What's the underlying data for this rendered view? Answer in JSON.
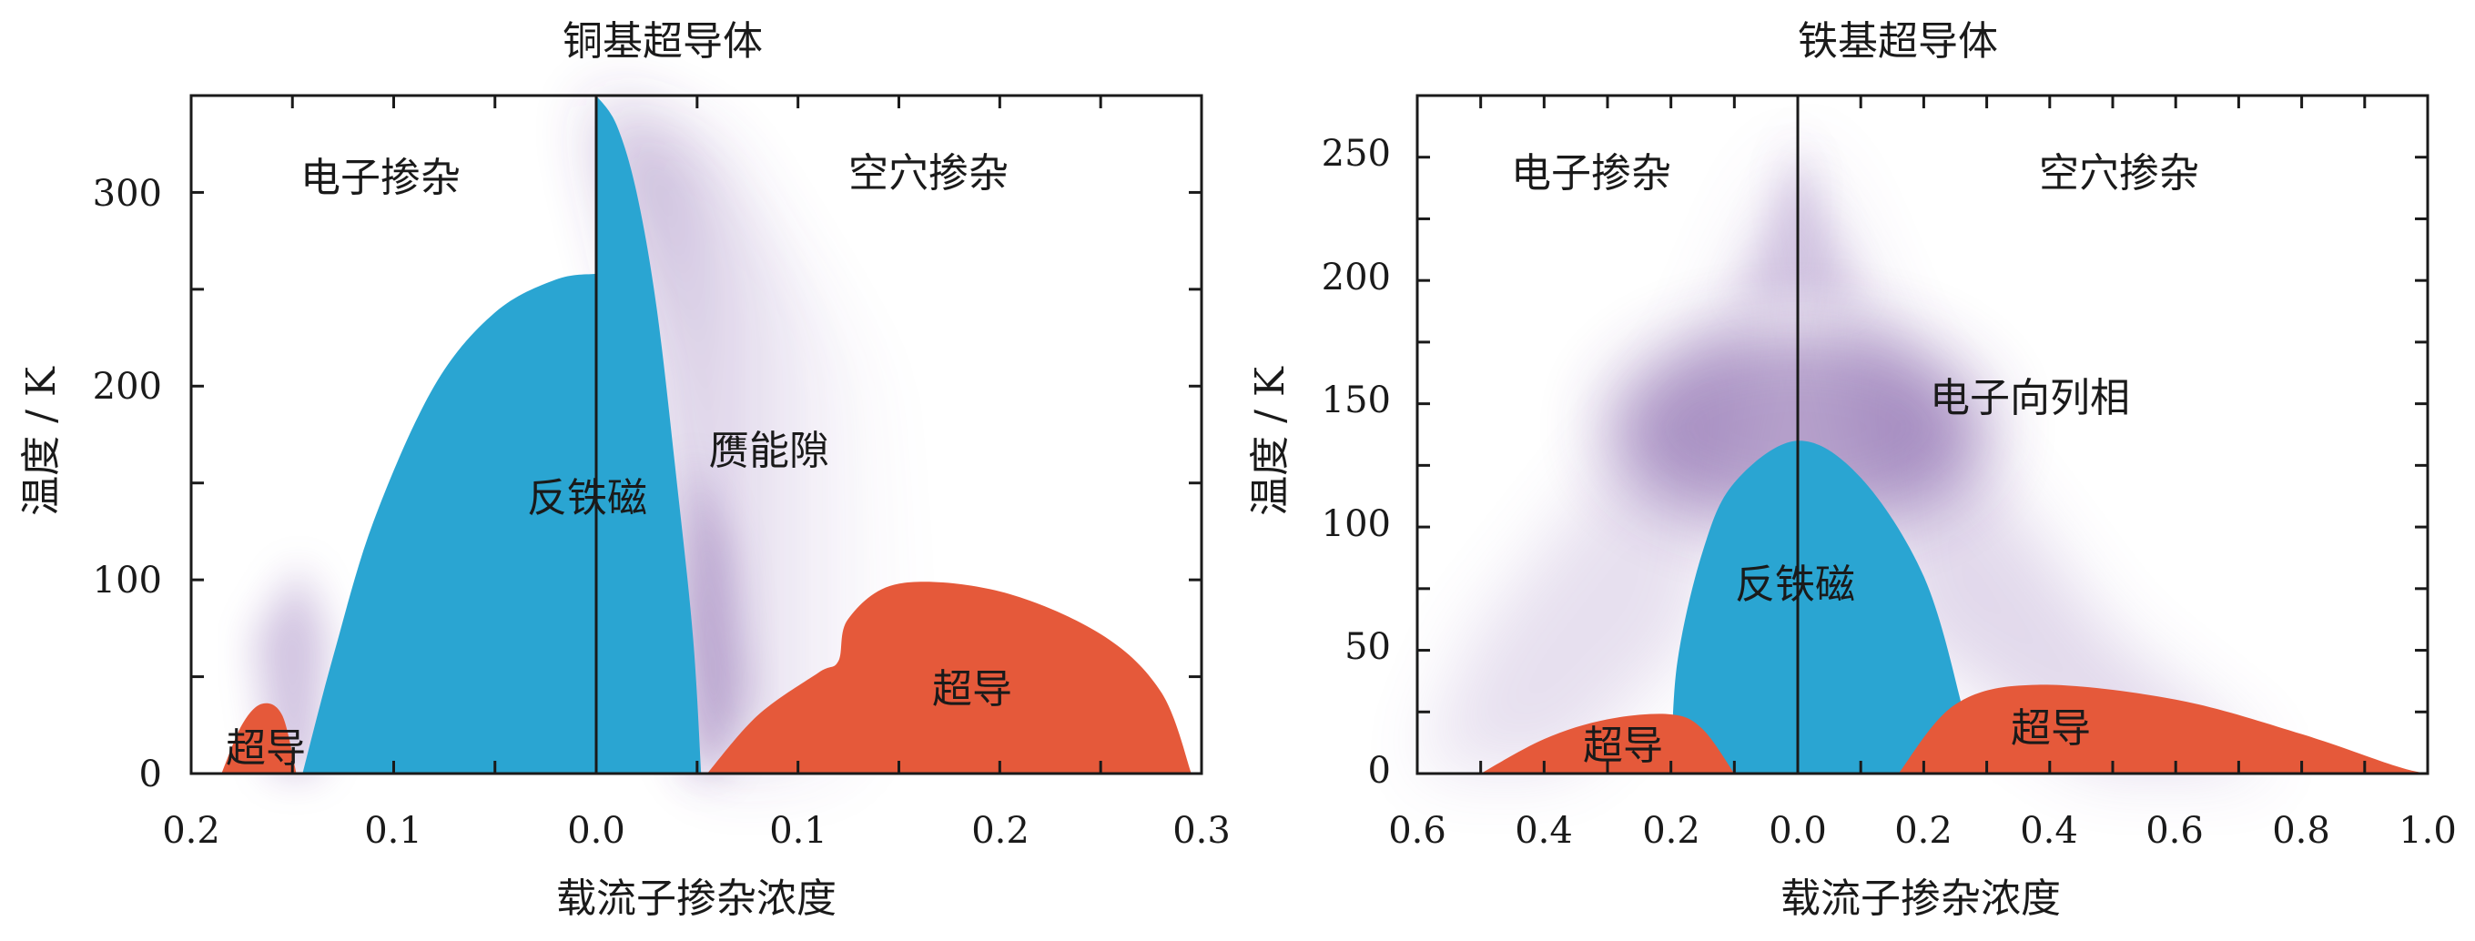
{
  "chart_data": [
    {
      "type": "phase-diagram",
      "title": "铜基超导体",
      "xlabel": "载流子掺杂浓度",
      "ylabel": "温度 / K",
      "xlim_electron": [
        0.2,
        0.0
      ],
      "xlim_hole": [
        0.0,
        0.3
      ],
      "ylim": [
        0,
        350
      ],
      "x_ticks_electron": [
        "0.2",
        "0.1",
        "0.0"
      ],
      "x_ticks_hole": [
        "0.1",
        "0.2",
        "0.3"
      ],
      "y_ticks": [
        "0",
        "100",
        "200",
        "300"
      ],
      "region_labels": {
        "electron_doped": "电子掺杂",
        "hole_doped": "空穴掺杂",
        "antiferromagnetic": "反铁磁",
        "pseudogap": "赝能隙",
        "sc_electron": "超导",
        "sc_hole": "超导"
      },
      "regions": {
        "afm_electron_boundary": [
          [
            0.0,
            258
          ],
          [
            0.02,
            255
          ],
          [
            0.05,
            238
          ],
          [
            0.08,
            200
          ],
          [
            0.11,
            130
          ],
          [
            0.13,
            60
          ],
          [
            0.145,
            0
          ]
        ],
        "afm_hole_boundary": [
          [
            0.0,
            350
          ],
          [
            0.01,
            335
          ],
          [
            0.02,
            300
          ],
          [
            0.03,
            240
          ],
          [
            0.04,
            150
          ],
          [
            0.048,
            70
          ],
          [
            0.052,
            0
          ]
        ],
        "sc_electron_dome": [
          [
            0.185,
            0
          ],
          [
            0.175,
            25
          ],
          [
            0.165,
            36
          ],
          [
            0.155,
            30
          ],
          [
            0.148,
            0
          ]
        ],
        "sc_hole_dome": [
          [
            0.055,
            0
          ],
          [
            0.08,
            30
          ],
          [
            0.11,
            52
          ],
          [
            0.12,
            58
          ],
          [
            0.125,
            80
          ],
          [
            0.15,
            98
          ],
          [
            0.2,
            94
          ],
          [
            0.25,
            72
          ],
          [
            0.28,
            42
          ],
          [
            0.295,
            0
          ]
        ]
      }
    },
    {
      "type": "phase-diagram",
      "title": "铁基超导体",
      "xlabel": "载流子掺杂浓度",
      "ylabel": "温度 / K",
      "xlim_electron": [
        0.6,
        0.0
      ],
      "xlim_hole": [
        0.0,
        1.0
      ],
      "ylim": [
        0,
        275
      ],
      "x_ticks_electron": [
        "0.6",
        "0.4",
        "0.2",
        "0.0"
      ],
      "x_ticks_hole": [
        "0.2",
        "0.4",
        "0.6",
        "0.8",
        "1.0"
      ],
      "y_ticks": [
        "0",
        "50",
        "100",
        "150",
        "200",
        "250"
      ],
      "region_labels": {
        "electron_doped": "电子掺杂",
        "hole_doped": "空穴掺杂",
        "nematic": "电子向列相",
        "antiferromagnetic": "反铁磁",
        "sc_electron": "超导",
        "sc_hole": "超导"
      },
      "regions": {
        "afm_dome": [
          [
            -0.2,
            0
          ],
          [
            -0.19,
            45
          ],
          [
            -0.15,
            90
          ],
          [
            -0.1,
            118
          ],
          [
            0.0,
            135
          ],
          [
            0.1,
            120
          ],
          [
            0.2,
            80
          ],
          [
            0.26,
            28
          ],
          [
            0.28,
            0
          ]
        ],
        "sc_electron_dome": [
          [
            -0.5,
            0
          ],
          [
            -0.4,
            14
          ],
          [
            -0.3,
            22
          ],
          [
            -0.2,
            24
          ],
          [
            -0.15,
            18
          ],
          [
            -0.1,
            0
          ]
        ],
        "sc_hole_dome": [
          [
            0.16,
            0
          ],
          [
            0.25,
            28
          ],
          [
            0.38,
            36
          ],
          [
            0.6,
            30
          ],
          [
            0.8,
            16
          ],
          [
            0.95,
            3
          ],
          [
            1.0,
            0
          ]
        ]
      }
    }
  ],
  "colors": {
    "afm": "#2aa5d2",
    "sc": "#e5593a",
    "fluctuation": "#6a3d96",
    "axis": "#1a1a1a"
  }
}
